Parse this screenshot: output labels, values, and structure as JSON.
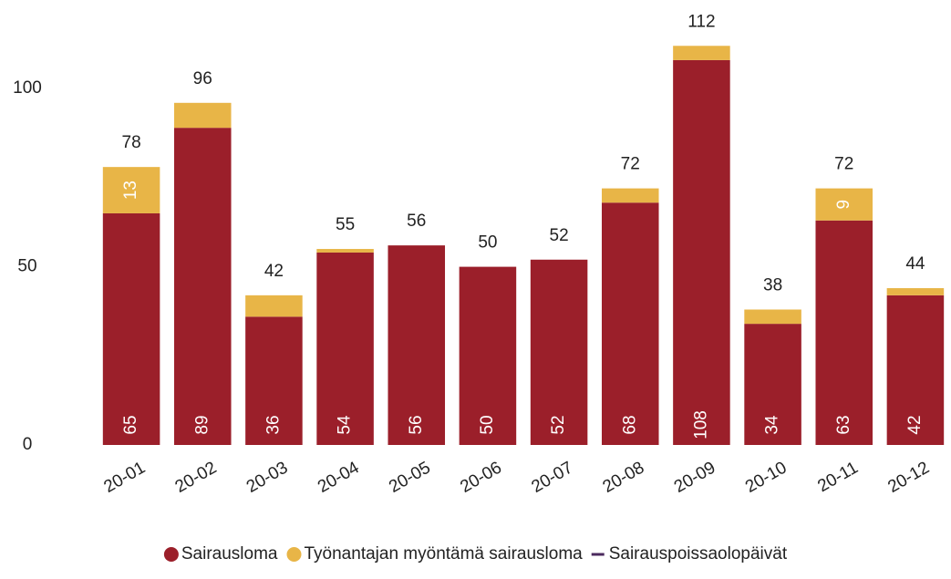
{
  "chart_data": {
    "type": "bar",
    "stacked": true,
    "categories": [
      "20-01",
      "20-02",
      "20-03",
      "20-04",
      "20-05",
      "20-06",
      "20-07",
      "20-08",
      "20-09",
      "20-10",
      "20-11",
      "20-12"
    ],
    "series": [
      {
        "name": "Sairausloma",
        "color": "#9b1f2a",
        "values": [
          65,
          89,
          36,
          54,
          56,
          50,
          52,
          68,
          108,
          34,
          63,
          42
        ]
      },
      {
        "name": "Työnantajan myöntämä sairausloma",
        "color": "#e8b547",
        "values": [
          13,
          7,
          6,
          1,
          0,
          0,
          0,
          4,
          4,
          4,
          9,
          2
        ]
      },
      {
        "name": "Sairauspoissaolopäivät",
        "type": "line",
        "color": "#4b2a5e",
        "values": [
          78,
          96,
          42,
          55,
          56,
          50,
          52,
          72,
          112,
          38,
          72,
          44
        ]
      }
    ],
    "ylim": [
      0,
      120
    ],
    "yticks": [
      0,
      50,
      100
    ],
    "grid": false,
    "legend": "bottom"
  }
}
